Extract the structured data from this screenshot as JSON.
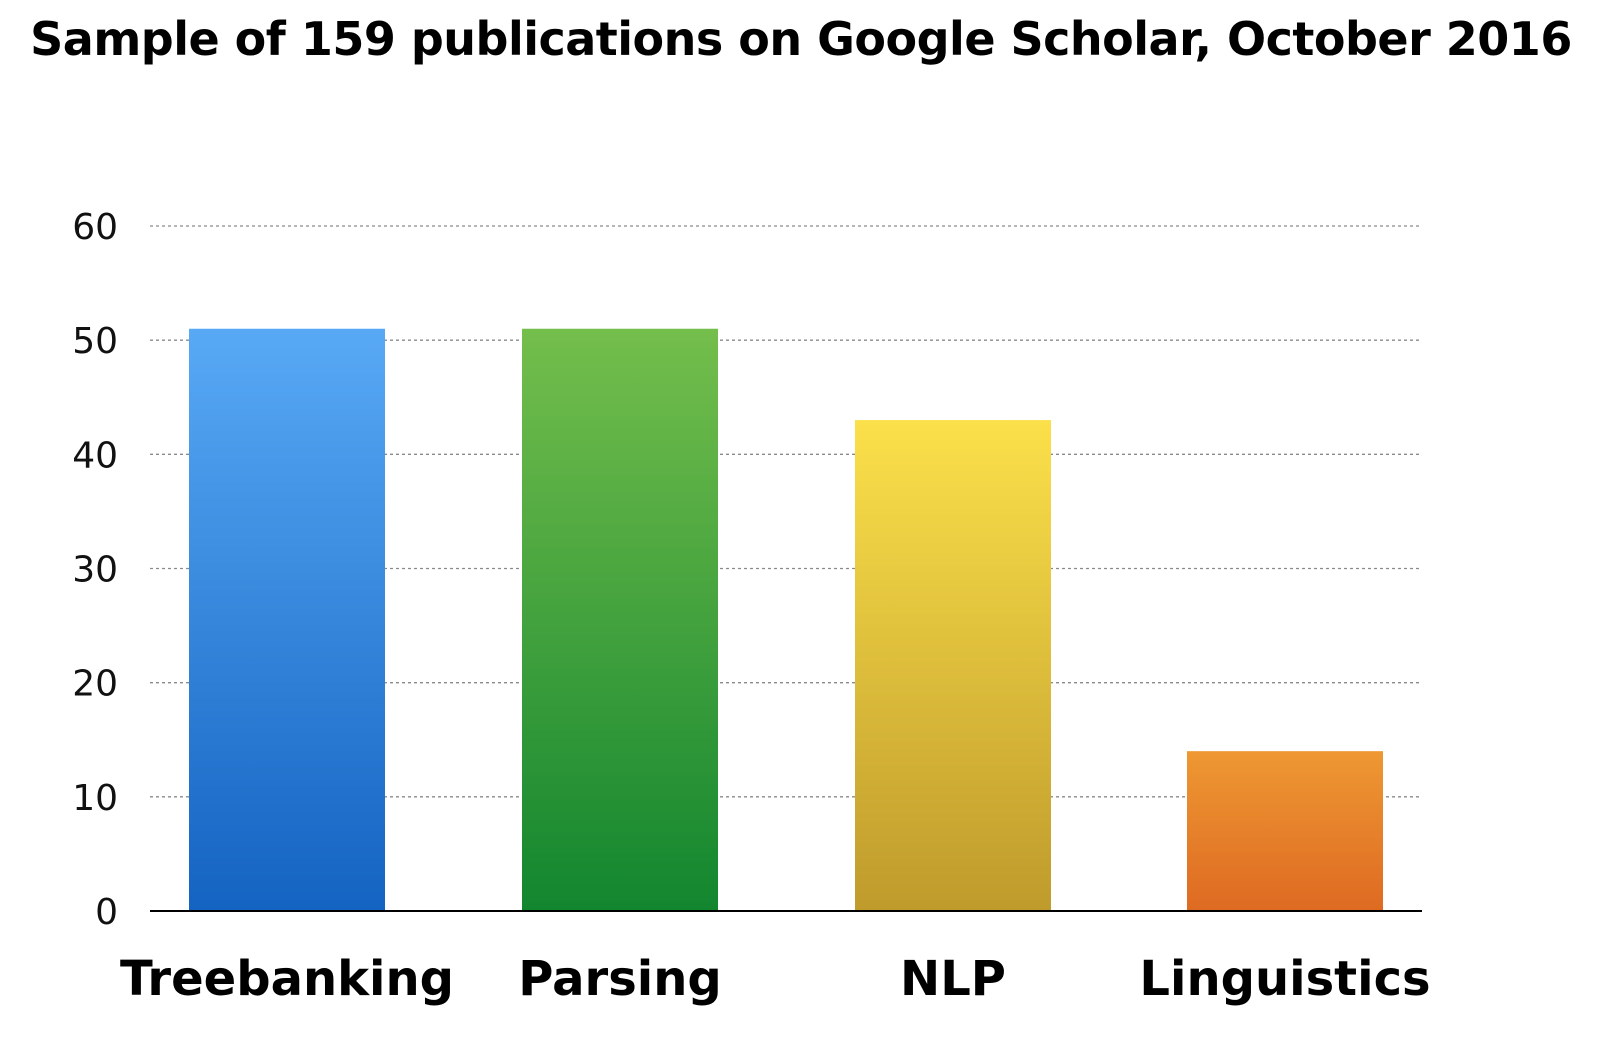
{
  "chart_data": {
    "type": "bar",
    "title": "Sample of 159 publications on Google Scholar, October 2016",
    "xlabel": "",
    "ylabel": "",
    "categories": [
      "Treebanking",
      "Parsing",
      "NLP",
      "Linguistics"
    ],
    "values": [
      51,
      51,
      43,
      14
    ],
    "ylim": [
      0,
      60
    ],
    "yticks": [
      0,
      10,
      20,
      30,
      40,
      50,
      60
    ],
    "grid": true,
    "legend": "none",
    "bar_colors": [
      {
        "top": "#58a9f5",
        "bottom": "#1463c2"
      },
      {
        "top": "#74be4c",
        "bottom": "#12862f"
      },
      {
        "top": "#fbe04a",
        "bottom": "#bf9b2c"
      },
      {
        "top": "#ee9833",
        "bottom": "#de6a22"
      }
    ]
  }
}
